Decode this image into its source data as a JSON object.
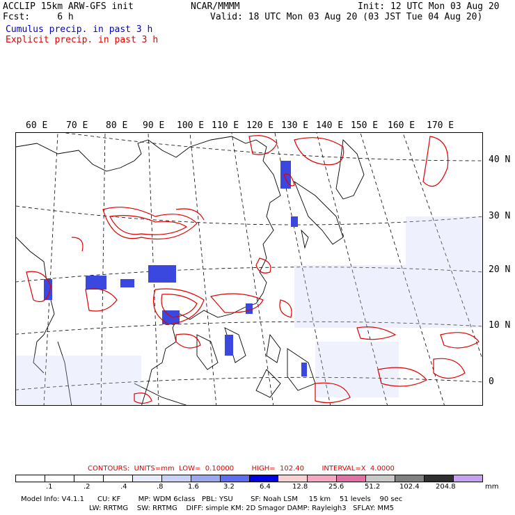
{
  "header": {
    "model_line": "ACCLIP 15km ARW-GFS init",
    "fcst_line": "Fcst:     6 h",
    "org": "NCAR/MMMM",
    "init": "Init: 12 UTC Mon 03 Aug 20",
    "valid": "Valid: 18 UTC Mon 03 Aug 20 (03 JST Tue 04 Aug 20)",
    "cumulus_label": "Cumulus precip. in past 3 h",
    "explicit_label": "Explicit precip. in past 3 h"
  },
  "map": {
    "longitude_labels": [
      "60 E",
      "70 E",
      "80 E",
      "90 E",
      "100 E",
      "110 E",
      "120 E",
      "130 E",
      "140 E",
      "150 E",
      "160 E",
      "170 E"
    ],
    "latitude_labels": [
      "40 N",
      "30 N",
      "20 N",
      "10 N",
      "0"
    ]
  },
  "contours_line": "CONTOURS:  UNITS=mm  LOW=  0.10000        HIGH=  102.40        INTERVAL=X  4.0000",
  "colorbar": {
    "colors": [
      "#ffffff",
      "#ffffff",
      "#ffffff",
      "#ffffff",
      "#e6ecfb",
      "#c8d2f6",
      "#9aa8f0",
      "#5f6ef0",
      "#0000e0",
      "#f6d2d2",
      "#f3a8c0",
      "#e070a6",
      "#c8c8c8",
      "#808080",
      "#303030",
      "#c8a0f0"
    ],
    "labels": [
      ".1",
      ".2",
      ".4",
      ".8",
      "1.6",
      "3.2",
      "6.4",
      "12.8",
      "25.6",
      "51.2",
      "102.4",
      "204.8"
    ],
    "unit": "mm"
  },
  "info": {
    "line1": "Model Info: V4.1.1      CU: KF        MP: WDM 6class   PBL: YSU        SF: Noah LSM     15 km    51 levels    90 sec",
    "line2": "LW: RRTMG    SW: RRTMG    DIFF: simple KM: 2D Smagor DAMP: Rayleigh3   SFLAY: MM5"
  }
}
